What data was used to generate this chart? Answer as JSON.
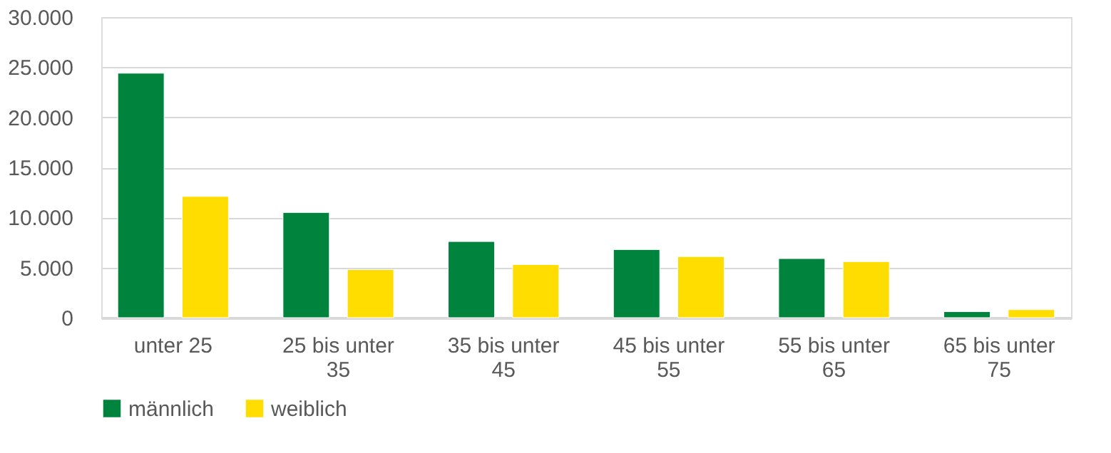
{
  "chart_data": {
    "type": "bar",
    "categories": [
      "unter 25",
      "25 bis unter 35",
      "35 bis unter 45",
      "45 bis unter 55",
      "55 bis unter 65",
      "65 bis unter 75"
    ],
    "series": [
      {
        "name": "männlich",
        "color": "#00843d",
        "values": [
          24400,
          10500,
          7600,
          6800,
          5900,
          600
        ]
      },
      {
        "name": "weiblich",
        "color": "#ffdd00",
        "values": [
          12100,
          4800,
          5300,
          6100,
          5600,
          800
        ]
      }
    ],
    "ylim": [
      0,
      30000
    ],
    "yticks": [
      {
        "value": 0,
        "label": "0"
      },
      {
        "value": 5000,
        "label": "5.000"
      },
      {
        "value": 10000,
        "label": "10.000"
      },
      {
        "value": 15000,
        "label": "15.000"
      },
      {
        "value": 20000,
        "label": "20.000"
      },
      {
        "value": 25000,
        "label": "25.000"
      },
      {
        "value": 30000,
        "label": "30.000"
      }
    ],
    "grid": "y",
    "legend": "bottom"
  }
}
